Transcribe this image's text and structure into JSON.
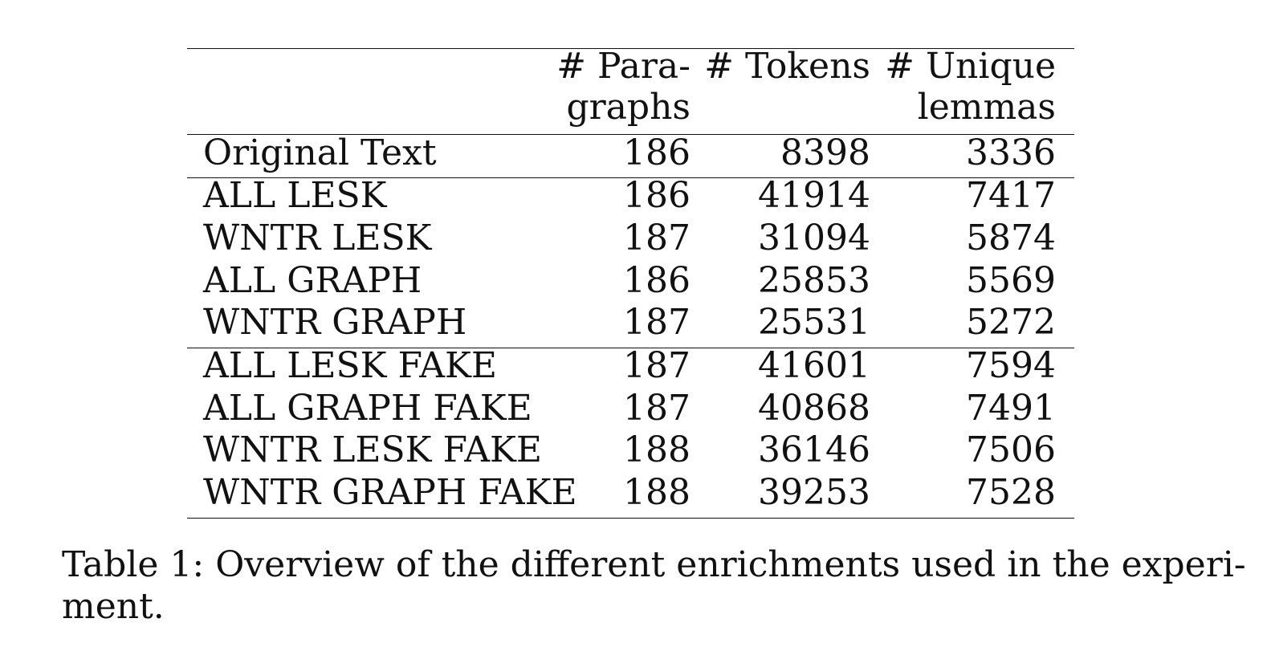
{
  "table": {
    "headers": {
      "paragraphs": [
        "# Para-",
        "graphs"
      ],
      "tokens": "# Tokens",
      "unique_lemmas": [
        "# Unique",
        "lemmas"
      ]
    },
    "rows": [
      {
        "label": "Original Text",
        "paragraphs": "186",
        "tokens": "8398",
        "unique_lemmas": "3336"
      },
      {
        "label": "ALL LESK",
        "paragraphs": "186",
        "tokens": "41914",
        "unique_lemmas": "7417"
      },
      {
        "label": "WNTR LESK",
        "paragraphs": "187",
        "tokens": "31094",
        "unique_lemmas": "5874"
      },
      {
        "label": "ALL GRAPH",
        "paragraphs": "186",
        "tokens": "25853",
        "unique_lemmas": "5569"
      },
      {
        "label": "WNTR GRAPH",
        "paragraphs": "187",
        "tokens": "25531",
        "unique_lemmas": "5272"
      },
      {
        "label": "ALL LESK FAKE",
        "paragraphs": "187",
        "tokens": "41601",
        "unique_lemmas": "7594"
      },
      {
        "label": "ALL GRAPH FAKE",
        "paragraphs": "187",
        "tokens": "40868",
        "unique_lemmas": "7491"
      },
      {
        "label": "WNTR LESK FAKE",
        "paragraphs": "188",
        "tokens": "36146",
        "unique_lemmas": "7506"
      },
      {
        "label": "WNTR GRAPH FAKE",
        "paragraphs": "188",
        "tokens": "39253",
        "unique_lemmas": "7528"
      }
    ]
  },
  "caption": {
    "lines": [
      "Table 1: Overview of the different enrichments used in the experi-",
      "ment."
    ]
  }
}
